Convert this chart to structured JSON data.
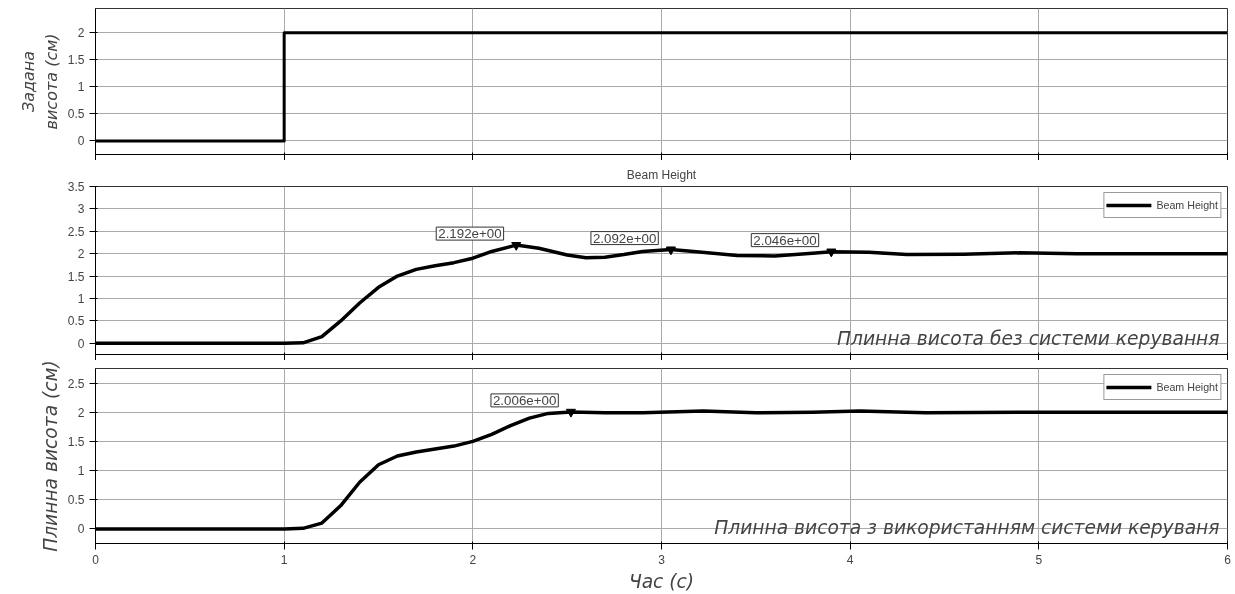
{
  "chart_data": [
    {
      "type": "step",
      "ylabel": "Задана висота (см)",
      "x": [
        0,
        1,
        6
      ],
      "values": [
        0,
        2,
        2
      ],
      "color": "#000000",
      "xlim": [
        0,
        6
      ],
      "xticks": [
        0,
        1,
        2,
        3,
        4,
        5,
        6
      ],
      "ylim": [
        -0.25,
        2.45
      ],
      "yticks": [
        0,
        0.5,
        1,
        1.5,
        2
      ],
      "grid": true,
      "tick_labels": "y",
      "legend": false
    },
    {
      "type": "line",
      "title": "Beam Height",
      "x": [
        0,
        1.0,
        1.1,
        1.2,
        1.3,
        1.4,
        1.5,
        1.6,
        1.7,
        1.8,
        1.9,
        2.0,
        2.1,
        2.23,
        2.35,
        2.5,
        2.6,
        2.7,
        2.8,
        2.9,
        3.05,
        3.2,
        3.4,
        3.6,
        3.8,
        3.9,
        4.1,
        4.3,
        4.6,
        4.9,
        5.2,
        5.5,
        6.0
      ],
      "series": [
        {
          "name": "Beam Height",
          "color": "#000000",
          "values": [
            0,
            0,
            0.01,
            0.15,
            0.5,
            0.9,
            1.25,
            1.5,
            1.65,
            1.73,
            1.8,
            1.9,
            2.05,
            2.192,
            2.12,
            1.97,
            1.91,
            1.92,
            1.98,
            2.05,
            2.092,
            2.04,
            1.96,
            1.95,
            2.01,
            2.046,
            2.03,
            1.98,
            1.99,
            2.02,
            2.0,
            2.0,
            2.0
          ]
        }
      ],
      "annotations": [
        {
          "text": "2.192e+00",
          "x": 2.23,
          "y": 2.192
        },
        {
          "text": "2.092e+00",
          "x": 3.05,
          "y": 2.092
        },
        {
          "text": "2.046e+00",
          "x": 3.9,
          "y": 2.046
        },
        "Плинна висота без системи керування"
      ],
      "xlim": [
        0,
        6
      ],
      "xticks": [
        0,
        1,
        2,
        3,
        4,
        5,
        6
      ],
      "ylim": [
        -0.25,
        3.5
      ],
      "yticks": [
        0,
        0.5,
        1,
        1.5,
        2,
        2.5,
        3,
        3.5
      ],
      "grid": true,
      "tick_labels": "y",
      "legend": "top right"
    },
    {
      "type": "line",
      "xlabel": "Час (с)",
      "ylabel": "Плинна висота (см)",
      "x": [
        0,
        1.0,
        1.1,
        1.2,
        1.3,
        1.4,
        1.5,
        1.6,
        1.7,
        1.8,
        1.9,
        2.0,
        2.1,
        2.2,
        2.3,
        2.4,
        2.52,
        2.7,
        2.9,
        3.22,
        3.5,
        3.8,
        4.05,
        4.4,
        5.0,
        6.0
      ],
      "series": [
        {
          "name": "Beam Height",
          "color": "#000000",
          "values": [
            0,
            0,
            0.01,
            0.1,
            0.4,
            0.8,
            1.1,
            1.25,
            1.32,
            1.37,
            1.42,
            1.5,
            1.62,
            1.77,
            1.9,
            1.98,
            2.006,
            1.99,
            1.99,
            2.02,
            1.99,
            2.0,
            2.02,
            1.99,
            2.0,
            2.0
          ]
        }
      ],
      "annotations": [
        {
          "text": "2.006e+00",
          "x": 2.52,
          "y": 2.006
        },
        "Плинна висота з використанням системи керуваня"
      ],
      "xlim": [
        0,
        6
      ],
      "xticks": [
        0,
        1,
        2,
        3,
        4,
        5,
        6
      ],
      "ylim": [
        -0.25,
        2.75
      ],
      "yticks": [
        0,
        0.5,
        1,
        1.5,
        2,
        2.5
      ],
      "grid": true,
      "legend": "top right"
    }
  ]
}
